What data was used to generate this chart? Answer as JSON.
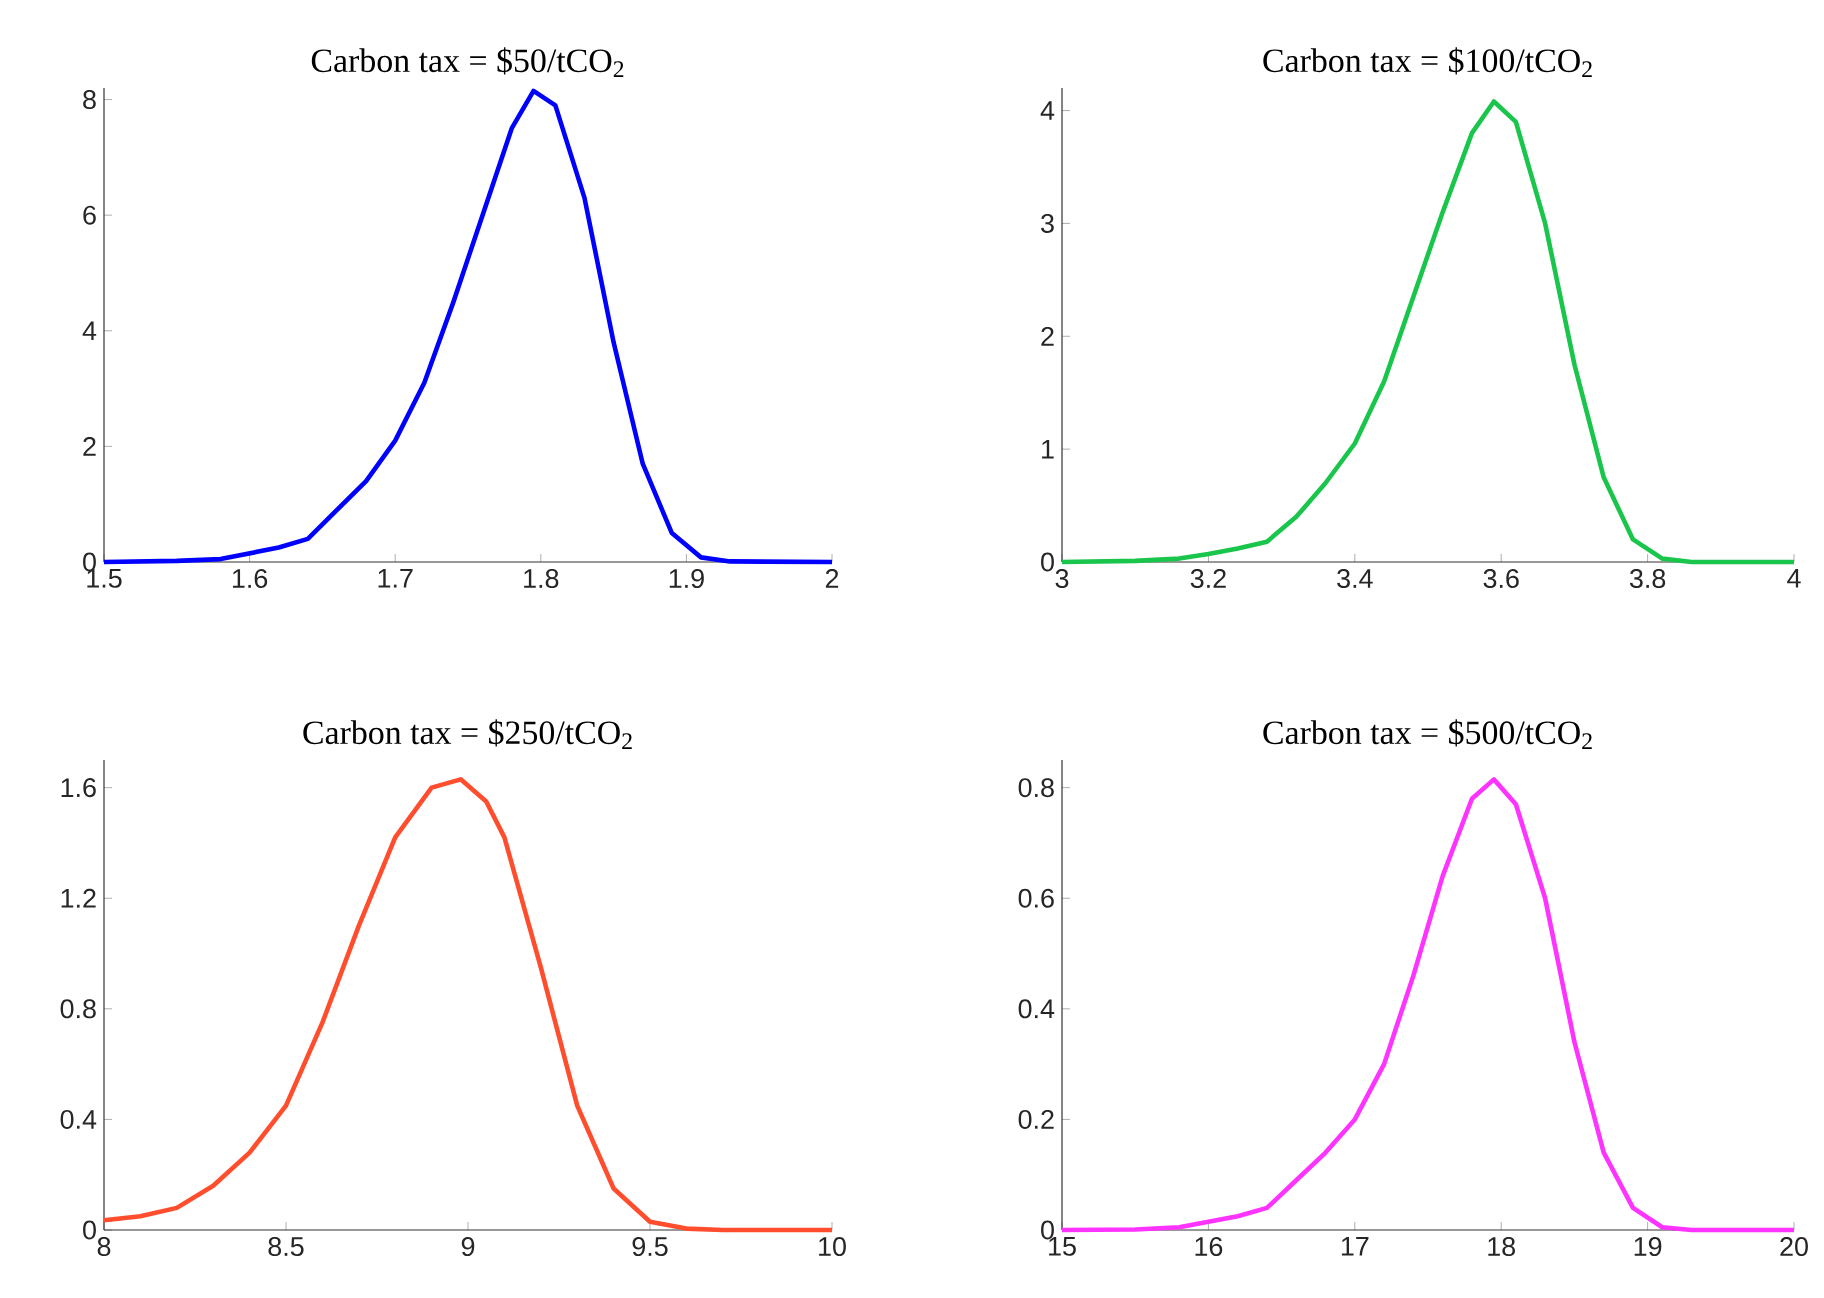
{
  "chart_data": [
    {
      "type": "line",
      "title": "Carbon tax = $50/tCO$_{2}$",
      "x": [
        1.5,
        1.55,
        1.58,
        1.6,
        1.62,
        1.64,
        1.66,
        1.68,
        1.7,
        1.72,
        1.74,
        1.76,
        1.78,
        1.795,
        1.81,
        1.83,
        1.85,
        1.87,
        1.89,
        1.91,
        1.93,
        2.0
      ],
      "series": [
        {
          "color": "#0000ff",
          "values": [
            0,
            0.02,
            0.05,
            0.15,
            0.25,
            0.4,
            0.9,
            1.4,
            2.1,
            3.1,
            4.5,
            6.0,
            7.5,
            8.15,
            7.9,
            6.3,
            3.8,
            1.7,
            0.5,
            0.08,
            0.01,
            0
          ]
        }
      ],
      "xlim": [
        1.5,
        2
      ],
      "ylim": [
        0,
        8.2
      ],
      "xticks": [
        1.5,
        1.6,
        1.7,
        1.8,
        1.9,
        2
      ],
      "yticks": [
        0,
        2,
        4,
        6,
        8
      ]
    },
    {
      "type": "line",
      "title": "Carbon tax = $100/tCO$_{2}$",
      "x": [
        3.0,
        3.1,
        3.16,
        3.2,
        3.24,
        3.28,
        3.32,
        3.36,
        3.4,
        3.44,
        3.48,
        3.52,
        3.56,
        3.59,
        3.62,
        3.66,
        3.7,
        3.74,
        3.78,
        3.82,
        3.86,
        4.0
      ],
      "series": [
        {
          "color": "#19c64b",
          "values": [
            0,
            0.01,
            0.03,
            0.07,
            0.12,
            0.18,
            0.4,
            0.7,
            1.05,
            1.6,
            2.35,
            3.1,
            3.8,
            4.08,
            3.9,
            3.0,
            1.75,
            0.75,
            0.2,
            0.03,
            0,
            0
          ]
        }
      ],
      "xlim": [
        3,
        4
      ],
      "ylim": [
        0,
        4.2
      ],
      "xticks": [
        3,
        3.2,
        3.4,
        3.6,
        3.8,
        4
      ],
      "yticks": [
        0,
        1,
        2,
        3,
        4
      ]
    },
    {
      "type": "line",
      "title": "Carbon tax = $250/tCO$_{2}$",
      "x": [
        8.0,
        8.1,
        8.2,
        8.3,
        8.4,
        8.5,
        8.6,
        8.7,
        8.8,
        8.9,
        8.98,
        9.05,
        9.1,
        9.2,
        9.3,
        9.4,
        9.5,
        9.6,
        9.7,
        10.0
      ],
      "series": [
        {
          "color": "#ff4d2e",
          "values": [
            0.035,
            0.05,
            0.08,
            0.16,
            0.28,
            0.45,
            0.75,
            1.1,
            1.42,
            1.6,
            1.63,
            1.55,
            1.42,
            0.95,
            0.45,
            0.15,
            0.03,
            0.005,
            0,
            0
          ]
        }
      ],
      "xlim": [
        8,
        10
      ],
      "ylim": [
        0,
        1.7
      ],
      "xticks": [
        8,
        8.5,
        9,
        9.5,
        10
      ],
      "yticks": [
        0,
        0.4,
        0.8,
        1.2,
        1.6
      ]
    },
    {
      "type": "line",
      "title": "Carbon tax = $500/tCO$_{2}$",
      "x": [
        15.0,
        15.5,
        15.8,
        16.0,
        16.2,
        16.4,
        16.6,
        16.8,
        17.0,
        17.2,
        17.4,
        17.6,
        17.8,
        17.95,
        18.1,
        18.3,
        18.5,
        18.7,
        18.9,
        19.1,
        19.3,
        20.0
      ],
      "series": [
        {
          "color": "#ff33ff",
          "values": [
            0,
            0.001,
            0.005,
            0.015,
            0.025,
            0.04,
            0.09,
            0.14,
            0.2,
            0.3,
            0.46,
            0.64,
            0.78,
            0.815,
            0.77,
            0.6,
            0.34,
            0.14,
            0.04,
            0.005,
            0,
            0
          ]
        }
      ],
      "xlim": [
        15,
        20
      ],
      "ylim": [
        0,
        0.85
      ],
      "xticks": [
        15,
        16,
        17,
        18,
        19,
        20
      ],
      "yticks": [
        0,
        0.2,
        0.4,
        0.6,
        0.8
      ]
    }
  ]
}
